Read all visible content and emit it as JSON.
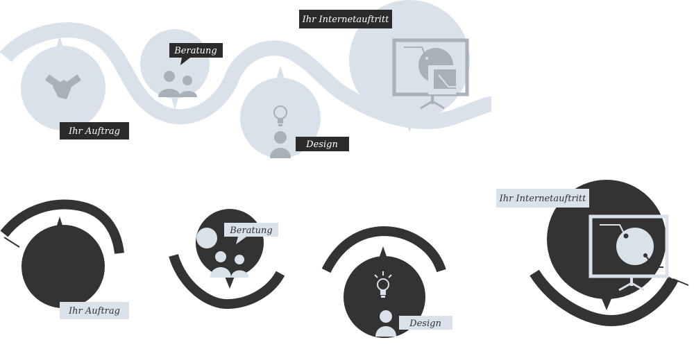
{
  "colors": {
    "light": "#d9e1ea",
    "light_icon": "#a8b1ba",
    "dark": "#333333",
    "label_dark_bg": "#2b2b2b",
    "label_dark_text": "#ffffff",
    "label_light_bg": "#d9e1ea",
    "label_light_text": "#333333"
  },
  "top_row": {
    "steps": [
      {
        "label": "Ihr Auftrag",
        "icon": "handshake-icon"
      },
      {
        "label": "Beratung",
        "icon": "people-icon"
      },
      {
        "label": "Design",
        "icon": "lightbulb-person-icon"
      },
      {
        "label": "Ihr Internetauftritt",
        "icon": "presentation-screen-icon"
      }
    ]
  },
  "bottom_row": {
    "steps": [
      {
        "label": "Ihr Auftrag",
        "icon": "none"
      },
      {
        "label": "Beratung",
        "icon": "people-icon"
      },
      {
        "label": "Design",
        "icon": "lightbulb-person-icon"
      },
      {
        "label": "Ihr Internetauftritt",
        "icon": "presentation-screen-icon"
      }
    ]
  }
}
